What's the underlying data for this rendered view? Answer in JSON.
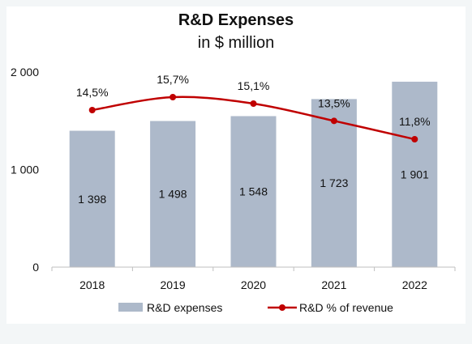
{
  "chart_data": {
    "type": "bar",
    "title": "R&D Expenses",
    "subtitle": "in $ million",
    "categories": [
      "2018",
      "2019",
      "2020",
      "2021",
      "2022"
    ],
    "series": [
      {
        "name": "R&D expenses",
        "type": "bar",
        "values": [
          1398,
          1498,
          1548,
          1723,
          1901
        ],
        "value_labels": [
          "1 398",
          "1 498",
          "1 548",
          "1 723",
          "1 901"
        ],
        "color": "#adb9ca"
      },
      {
        "name": "R&D % of revenue",
        "type": "line",
        "values": [
          14.5,
          15.7,
          15.1,
          13.5,
          11.8
        ],
        "value_labels": [
          "14,5%",
          "15,7%",
          "15,1%",
          "13,5%",
          "11,8%"
        ],
        "color": "#c00000"
      }
    ],
    "y_ticks": [
      {
        "value": 0,
        "label": "0"
      },
      {
        "value": 1000,
        "label": "1 000"
      },
      {
        "value": 2000,
        "label": "2 000"
      }
    ],
    "ylim": [
      0,
      2000
    ],
    "grid": false,
    "legend": "bottom"
  }
}
